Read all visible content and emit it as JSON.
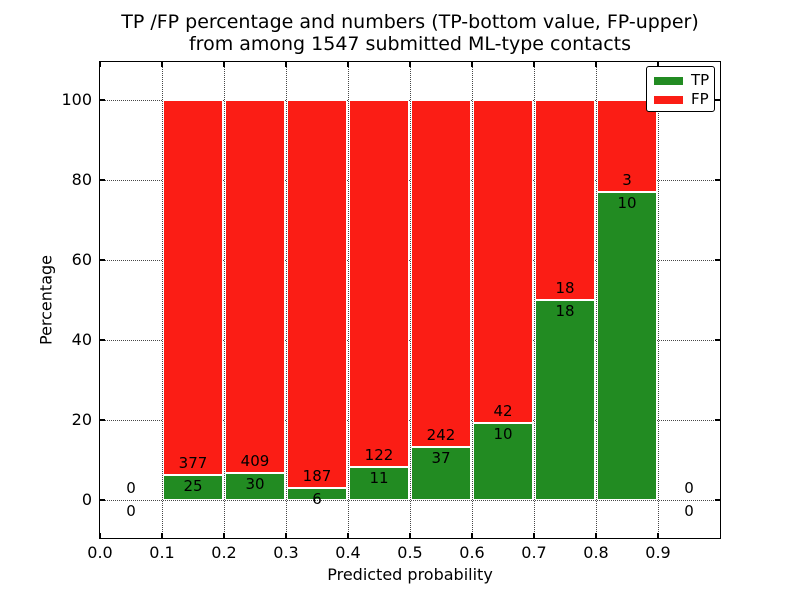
{
  "title": {
    "line1": "TP /FP percentage and numbers (TP-bottom value, FP-upper)",
    "line2": "from among 1547 submitted ML-type contacts"
  },
  "axes": {
    "xlabel": "Predicted probability",
    "ylabel": "Percentage",
    "xtick_labels": [
      "0.0",
      "0.1",
      "0.2",
      "0.3",
      "0.4",
      "0.5",
      "0.6",
      "0.7",
      "0.8",
      "0.9"
    ],
    "ytick_values": [
      0,
      20,
      40,
      60,
      80,
      100
    ]
  },
  "legend": {
    "entries": [
      {
        "label": "TP",
        "color": "#228b22"
      },
      {
        "label": "FP",
        "color": "#fb1d15"
      }
    ]
  },
  "chart_data": {
    "type": "bar",
    "stacked": true,
    "units": "percent_of_bin",
    "title": "TP /FP percentage and numbers (TP-bottom value, FP-upper) from among 1547 submitted ML-type contacts",
    "xlabel": "Predicted probability",
    "ylabel": "Percentage",
    "xlim": [
      0.0,
      1.0
    ],
    "ylim": [
      -9.5,
      109.5
    ],
    "grid": true,
    "grid_style": "dotted",
    "legend_position": "upper-right",
    "total_contacts": 1547,
    "bin_width": 0.1,
    "colors": {
      "tp": "#228b22",
      "fp": "#fb1d15",
      "bar_edge": "#ffffff"
    },
    "bins": [
      {
        "x0": 0.0,
        "x1": 0.1,
        "tp": 0,
        "fp": 0,
        "tp_percent": 0.0
      },
      {
        "x0": 0.1,
        "x1": 0.2,
        "tp": 25,
        "fp": 377,
        "tp_percent": 6.2
      },
      {
        "x0": 0.2,
        "x1": 0.3,
        "tp": 30,
        "fp": 409,
        "tp_percent": 6.8
      },
      {
        "x0": 0.3,
        "x1": 0.4,
        "tp": 6,
        "fp": 187,
        "tp_percent": 3.1
      },
      {
        "x0": 0.4,
        "x1": 0.5,
        "tp": 11,
        "fp": 122,
        "tp_percent": 8.3
      },
      {
        "x0": 0.5,
        "x1": 0.6,
        "tp": 37,
        "fp": 242,
        "tp_percent": 13.3
      },
      {
        "x0": 0.6,
        "x1": 0.7,
        "tp": 10,
        "fp": 42,
        "tp_percent": 19.2
      },
      {
        "x0": 0.7,
        "x1": 0.8,
        "tp": 18,
        "fp": 18,
        "tp_percent": 50.0
      },
      {
        "x0": 0.8,
        "x1": 0.9,
        "tp": 10,
        "fp": 3,
        "tp_percent": 76.9
      },
      {
        "x0": 0.9,
        "x1": 1.0,
        "tp": 0,
        "fp": 0,
        "tp_percent": 0.0
      }
    ],
    "series": [
      {
        "name": "TP",
        "color": "#228b22",
        "position": "bottom",
        "counts": [
          0,
          25,
          30,
          6,
          11,
          37,
          10,
          18,
          10,
          0
        ]
      },
      {
        "name": "FP",
        "color": "#fb1d15",
        "position": "top",
        "counts": [
          0,
          377,
          409,
          187,
          122,
          242,
          42,
          18,
          3,
          0
        ]
      }
    ]
  }
}
